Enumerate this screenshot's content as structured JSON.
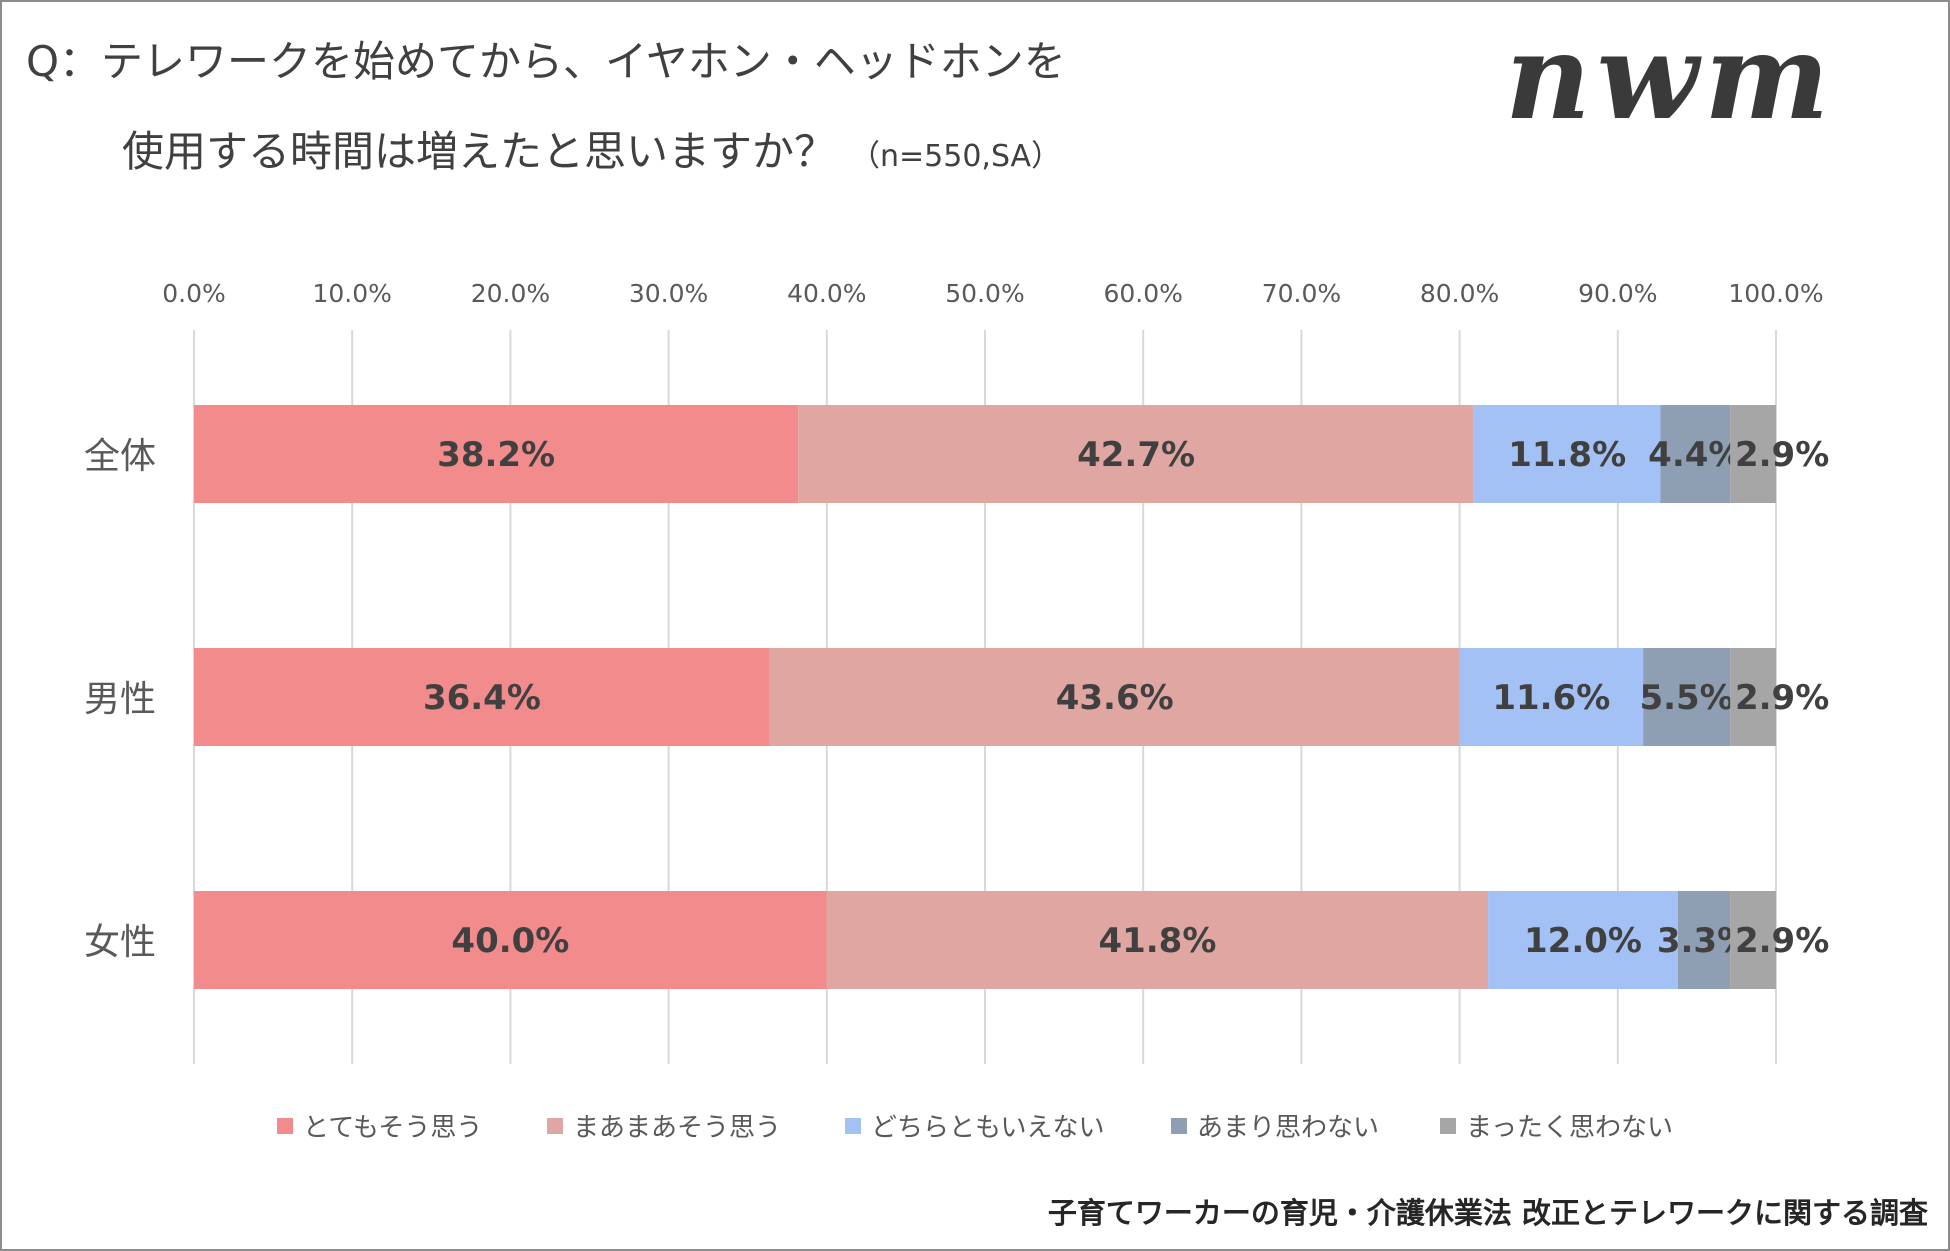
{
  "title": {
    "line1": "Q：テレワークを始めてから、イヤホン・ヘッドホンを",
    "line2": "使用する時間は増えたと思いますか？",
    "sample": "（n=550,SA）"
  },
  "logo_text": "nwm",
  "footer": "子育てワーカーの育児・介護休業法 改正とテレワークに関する調査",
  "chart_data": {
    "type": "bar",
    "orientation": "horizontal",
    "stacked": true,
    "categories": [
      "全体",
      "男性",
      "女性"
    ],
    "xlim": [
      0,
      100
    ],
    "x_ticks": [
      "0.0%",
      "10.0%",
      "20.0%",
      "30.0%",
      "40.0%",
      "50.0%",
      "60.0%",
      "70.0%",
      "80.0%",
      "90.0%",
      "100.0%"
    ],
    "grid": true,
    "legend_position": "bottom",
    "series": [
      {
        "name": "とてもそう思う",
        "color": "#f28b8b",
        "values": [
          38.2,
          36.4,
          40.0
        ],
        "labels": [
          "38.2%",
          "36.4%",
          "40.0%"
        ]
      },
      {
        "name": "まあまあそう思う",
        "color": "#e0a7a2",
        "values": [
          42.7,
          43.6,
          41.8
        ],
        "labels": [
          "42.7%",
          "43.6%",
          "41.8%"
        ]
      },
      {
        "name": "どちらともいえない",
        "color": "#a3c1f4",
        "values": [
          11.8,
          11.6,
          12.0
        ],
        "labels": [
          "11.8%",
          "11.6%",
          "12.0%"
        ]
      },
      {
        "name": "あまり思わない",
        "color": "#8f9fb3",
        "values": [
          4.4,
          5.5,
          3.3
        ],
        "labels": [
          "4.4%",
          "5.5%",
          "3.3%"
        ]
      },
      {
        "name": "まったく思わない",
        "color": "#a6a6a6",
        "values": [
          2.9,
          2.9,
          2.9
        ],
        "labels": [
          "2.9%",
          "2.9%",
          "2.9%"
        ]
      }
    ]
  }
}
